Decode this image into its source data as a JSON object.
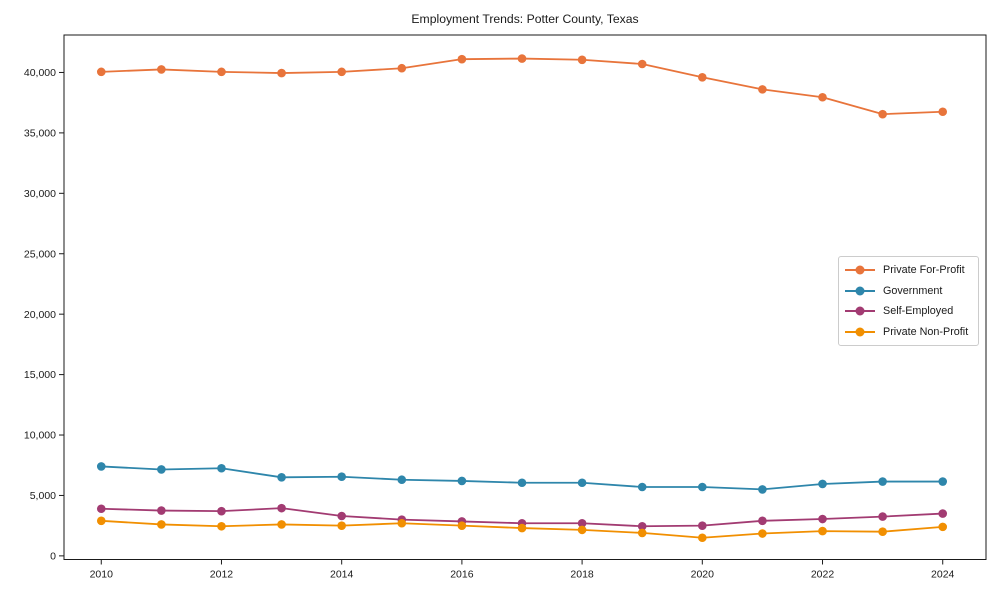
{
  "title": "Employment Trends: Potter County, Texas",
  "axes": {
    "x_tick_labels": [
      "2010",
      "2012",
      "2014",
      "2016",
      "2018",
      "2020",
      "2022",
      "2024"
    ],
    "y_tick_labels": [
      "0",
      "5,000",
      "10,000",
      "15,000",
      "20,000",
      "25,000",
      "30,000",
      "35,000",
      "40,000"
    ]
  },
  "legend": {
    "items": [
      {
        "label": "Private For-Profit",
        "color": "#E8743B"
      },
      {
        "label": "Government",
        "color": "#2E86AB"
      },
      {
        "label": "Self-Employed",
        "color": "#A23B72"
      },
      {
        "label": "Private Non-Profit",
        "color": "#F18F01"
      }
    ]
  },
  "chart_data": {
    "type": "line",
    "title": "Employment Trends: Potter County, Texas",
    "xlabel": "",
    "ylabel": "",
    "x": [
      2010,
      2011,
      2012,
      2013,
      2014,
      2015,
      2016,
      2017,
      2018,
      2019,
      2020,
      2021,
      2022,
      2023,
      2024
    ],
    "series": [
      {
        "name": "Private For-Profit",
        "color": "#E8743B",
        "values": [
          40050,
          40250,
          40050,
          39950,
          40050,
          40350,
          41100,
          41150,
          41050,
          40700,
          39600,
          38600,
          37950,
          36550,
          36750
        ]
      },
      {
        "name": "Government",
        "color": "#2E86AB",
        "values": [
          7400,
          7150,
          7250,
          6500,
          6550,
          6300,
          6200,
          6050,
          6050,
          5700,
          5700,
          5500,
          5950,
          6150,
          6150
        ]
      },
      {
        "name": "Self-Employed",
        "color": "#A23B72",
        "values": [
          3900,
          3750,
          3700,
          3950,
          3300,
          3000,
          2850,
          2700,
          2700,
          2450,
          2500,
          2900,
          3050,
          3250,
          3500
        ]
      },
      {
        "name": "Private Non-Profit",
        "color": "#F18F01",
        "values": [
          2900,
          2600,
          2450,
          2600,
          2500,
          2700,
          2500,
          2300,
          2150,
          1900,
          1500,
          1850,
          2050,
          2000,
          2400
        ]
      }
    ],
    "xticks": [
      2010,
      2012,
      2014,
      2016,
      2018,
      2020,
      2022,
      2024
    ],
    "yticks": [
      0,
      5000,
      10000,
      15000,
      20000,
      25000,
      30000,
      35000,
      40000
    ],
    "xlim": [
      2009.38,
      2024.72
    ],
    "ylim": [
      -300,
      43100
    ],
    "grid": false,
    "legend_position": "center-right",
    "marker": "circle"
  }
}
